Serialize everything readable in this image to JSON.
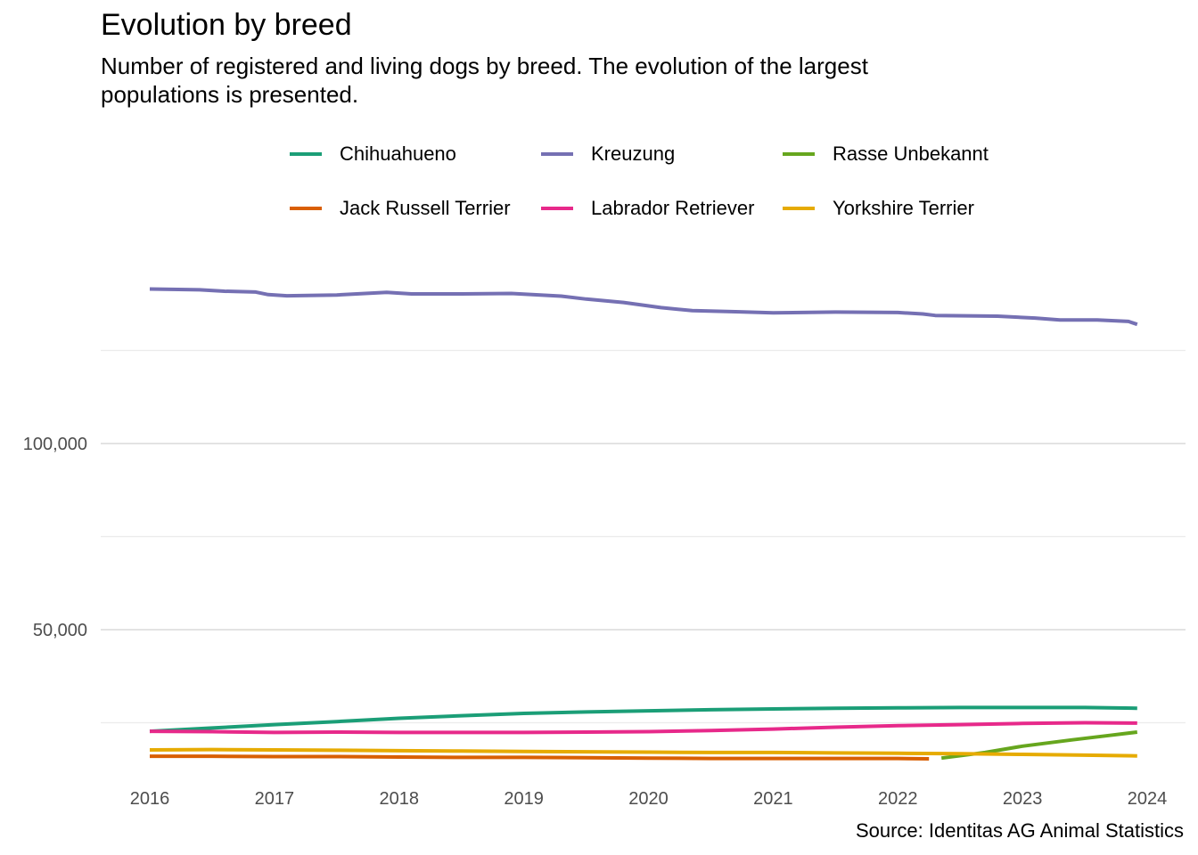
{
  "chart_data": {
    "type": "line",
    "title": "Evolution by breed",
    "subtitle": "Number of registered and living dogs by breed. The evolution of the largest populations is presented.",
    "caption": "Source: Identitas AG Animal Statistics",
    "xlabel": "",
    "ylabel": "",
    "xlim": [
      2016,
      2024
    ],
    "ylim": [
      16000,
      137000
    ],
    "x_ticks": [
      "2016",
      "2017",
      "2018",
      "2019",
      "2020",
      "2021",
      "2022",
      "2023",
      "2024"
    ],
    "y_ticks": [
      {
        "value": 50000,
        "label": "50,000"
      },
      {
        "value": 100000,
        "label": "100,000"
      }
    ],
    "y_minor_grid": [
      25000,
      75000,
      125000
    ],
    "grid": true,
    "legend_position": "top",
    "series": [
      {
        "name": "Chihuahueno",
        "color": "#1B9E77",
        "points": [
          [
            2016.0,
            22700
          ],
          [
            2016.5,
            23600
          ],
          [
            2017.0,
            24500
          ],
          [
            2017.5,
            25300
          ],
          [
            2018.0,
            26200
          ],
          [
            2018.5,
            26900
          ],
          [
            2019.0,
            27500
          ],
          [
            2019.5,
            27900
          ],
          [
            2020.0,
            28200
          ],
          [
            2020.5,
            28500
          ],
          [
            2021.0,
            28700
          ],
          [
            2021.5,
            28900
          ],
          [
            2022.0,
            29000
          ],
          [
            2022.5,
            29100
          ],
          [
            2023.0,
            29100
          ],
          [
            2023.5,
            29100
          ],
          [
            2023.92,
            28900
          ]
        ]
      },
      {
        "name": "Kreuzung",
        "color": "#7570B3",
        "points": [
          [
            2016.0,
            141500
          ],
          [
            2016.4,
            141300
          ],
          [
            2016.6,
            140900
          ],
          [
            2016.85,
            140700
          ],
          [
            2016.95,
            140000
          ],
          [
            2017.1,
            139700
          ],
          [
            2017.5,
            139900
          ],
          [
            2017.9,
            140600
          ],
          [
            2018.1,
            140200
          ],
          [
            2018.5,
            140200
          ],
          [
            2018.9,
            140300
          ],
          [
            2019.3,
            139600
          ],
          [
            2019.5,
            138800
          ],
          [
            2019.8,
            137900
          ],
          [
            2020.1,
            136500
          ],
          [
            2020.35,
            135700
          ],
          [
            2020.7,
            135400
          ],
          [
            2021.0,
            135100
          ],
          [
            2021.5,
            135300
          ],
          [
            2022.0,
            135200
          ],
          [
            2022.2,
            134800
          ],
          [
            2022.3,
            134400
          ],
          [
            2022.8,
            134200
          ],
          [
            2023.1,
            133700
          ],
          [
            2023.3,
            133200
          ],
          [
            2023.6,
            133200
          ],
          [
            2023.85,
            132800
          ],
          [
            2023.92,
            132000
          ]
        ]
      },
      {
        "name": "Rasse Unbekannt",
        "color": "#66A61E",
        "points": [
          [
            2022.35,
            15500
          ],
          [
            2022.7,
            17000
          ],
          [
            2023.0,
            18700
          ],
          [
            2023.4,
            20400
          ],
          [
            2023.7,
            21600
          ],
          [
            2023.92,
            22500
          ]
        ]
      },
      {
        "name": "Jack Russell Terrier",
        "color": "#D95F02",
        "points": [
          [
            2016.0,
            16000
          ],
          [
            2016.5,
            16000
          ],
          [
            2017.0,
            15900
          ],
          [
            2017.5,
            15900
          ],
          [
            2018.0,
            15800
          ],
          [
            2018.5,
            15700
          ],
          [
            2019.0,
            15700
          ],
          [
            2019.5,
            15600
          ],
          [
            2020.0,
            15500
          ],
          [
            2020.5,
            15400
          ],
          [
            2021.0,
            15400
          ],
          [
            2021.5,
            15400
          ],
          [
            2022.0,
            15400
          ],
          [
            2022.25,
            15300
          ]
        ]
      },
      {
        "name": "Labrador Retriever",
        "color": "#E7298A",
        "points": [
          [
            2016.0,
            22700
          ],
          [
            2016.5,
            22600
          ],
          [
            2017.0,
            22400
          ],
          [
            2017.5,
            22500
          ],
          [
            2018.0,
            22400
          ],
          [
            2018.5,
            22400
          ],
          [
            2019.0,
            22400
          ],
          [
            2019.5,
            22500
          ],
          [
            2020.0,
            22600
          ],
          [
            2020.5,
            22900
          ],
          [
            2021.0,
            23300
          ],
          [
            2021.5,
            23800
          ],
          [
            2022.0,
            24200
          ],
          [
            2022.5,
            24500
          ],
          [
            2023.0,
            24800
          ],
          [
            2023.5,
            25000
          ],
          [
            2023.92,
            24900
          ]
        ]
      },
      {
        "name": "Yorkshire Terrier",
        "color": "#E6AB02",
        "points": [
          [
            2016.0,
            17700
          ],
          [
            2016.5,
            17800
          ],
          [
            2017.0,
            17700
          ],
          [
            2017.5,
            17600
          ],
          [
            2018.0,
            17500
          ],
          [
            2018.5,
            17400
          ],
          [
            2019.0,
            17300
          ],
          [
            2019.5,
            17200
          ],
          [
            2020.0,
            17100
          ],
          [
            2020.5,
            17000
          ],
          [
            2021.0,
            17000
          ],
          [
            2021.5,
            16900
          ],
          [
            2022.0,
            16800
          ],
          [
            2022.5,
            16700
          ],
          [
            2023.0,
            16500
          ],
          [
            2023.5,
            16300
          ],
          [
            2023.92,
            16100
          ]
        ]
      }
    ]
  }
}
